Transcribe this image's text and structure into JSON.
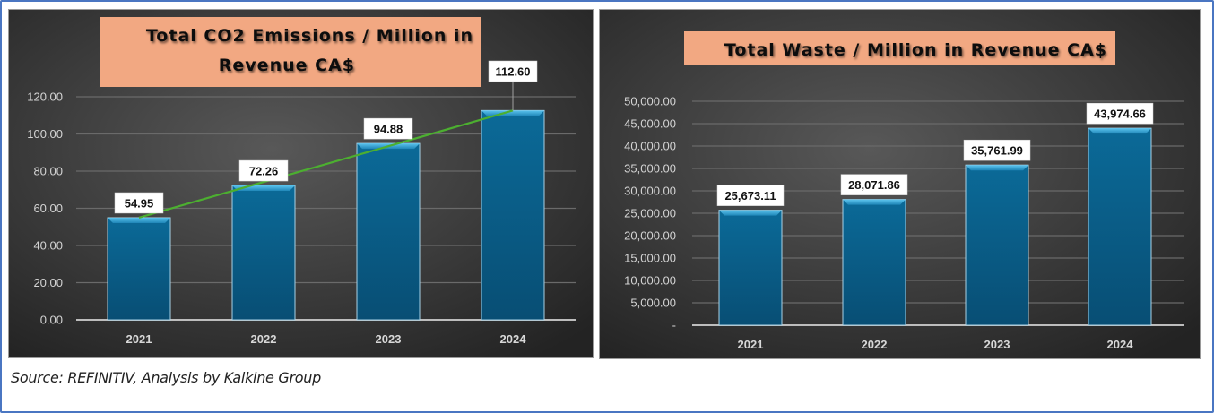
{
  "source_note": "Source: REFINITIV, Analysis by Kalkine Group",
  "colors": {
    "panel_bg_center": "#585858",
    "panel_bg_edge": "#232323",
    "title_box": "#f2a882",
    "bar_top": "#1f86b8",
    "bar_body": "#0b6a98",
    "bar_bottom": "#084e74",
    "trendline": "#4caf30",
    "gridline": "#6a6a6a"
  },
  "chart_data": [
    {
      "type": "bar",
      "title": "Total CO2 Emissions / Million in Revenue CA$",
      "title_lines": [
        "Total CO2 Emissions / Million in",
        "Revenue CA$"
      ],
      "xlabel": "",
      "ylabel": "",
      "categories": [
        "2021",
        "2022",
        "2023",
        "2024"
      ],
      "values": [
        54.95,
        72.26,
        94.88,
        112.6
      ],
      "value_labels": [
        "54.95",
        "72.26",
        "94.88",
        "112.60"
      ],
      "ylim": [
        0,
        120
      ],
      "yticks": [
        0,
        20,
        40,
        60,
        80,
        100,
        120
      ],
      "ytick_labels": [
        "0.00",
        "20.00",
        "40.00",
        "60.00",
        "80.00",
        "100.00",
        "120.00"
      ],
      "grid": true,
      "trendline": {
        "type": "linear",
        "from": 54.95,
        "to": 112.6
      },
      "legend": "none"
    },
    {
      "type": "bar",
      "title": "Total Waste / Million in Revenue CA$",
      "title_lines": [
        "Total Waste / Million in Revenue CA$"
      ],
      "xlabel": "",
      "ylabel": "",
      "categories": [
        "2021",
        "2022",
        "2023",
        "2024"
      ],
      "values": [
        25673.11,
        28071.86,
        35761.99,
        43974.66
      ],
      "value_labels": [
        "25,673.11",
        "28,071.86",
        "35,761.99",
        "43,974.66"
      ],
      "ylim": [
        0,
        50000
      ],
      "yticks": [
        0,
        5000,
        10000,
        15000,
        20000,
        25000,
        30000,
        35000,
        40000,
        45000,
        50000
      ],
      "ytick_labels": [
        "-",
        "5,000.00",
        "10,000.00",
        "15,000.00",
        "20,000.00",
        "25,000.00",
        "30,000.00",
        "35,000.00",
        "40,000.00",
        "45,000.00",
        "50,000.00"
      ],
      "grid": true,
      "legend": "none"
    }
  ]
}
